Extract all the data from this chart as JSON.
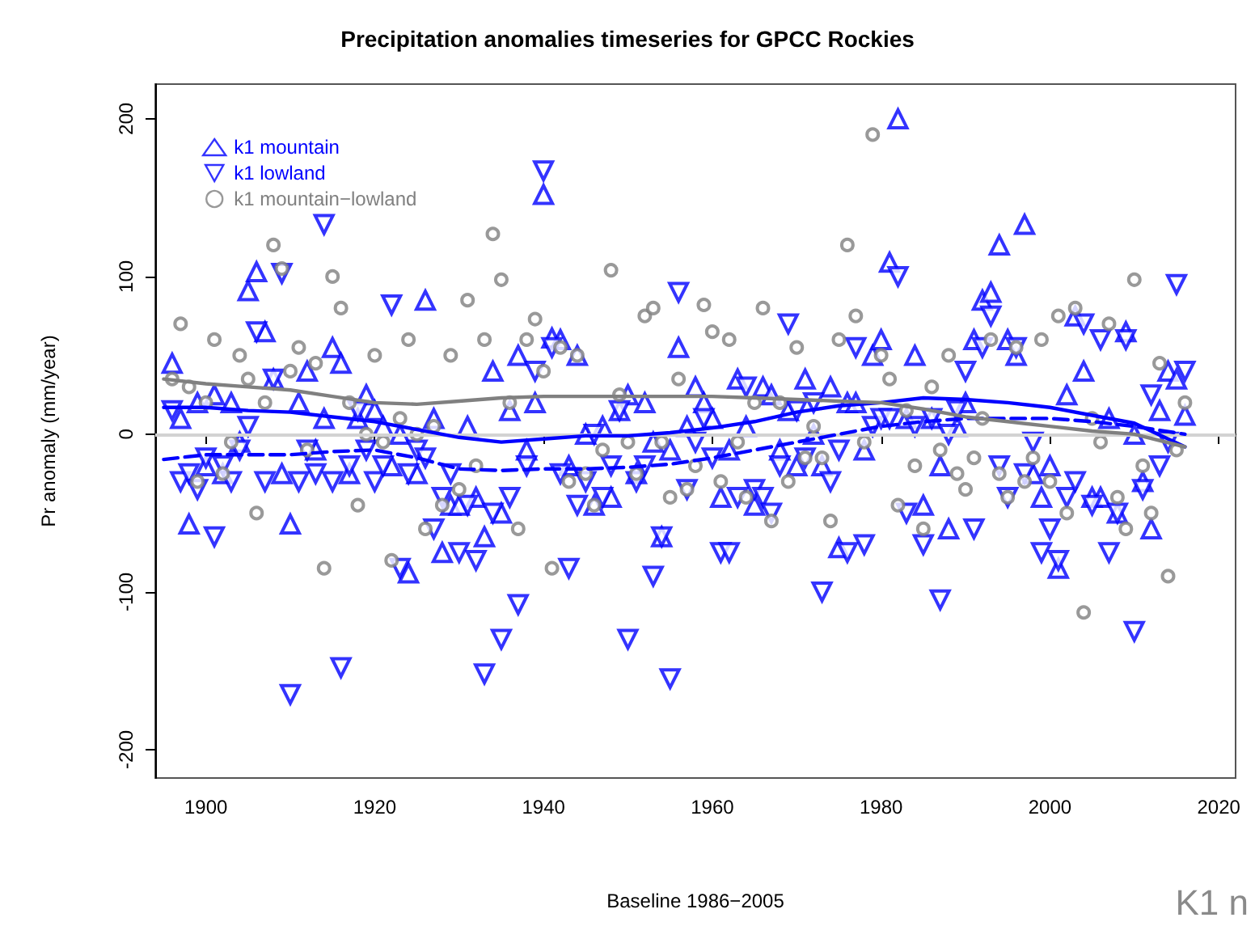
{
  "chart_data": {
    "type": "scatter",
    "title": "Precipitation anomalies timeseries for GPCC Rockies",
    "xlabel": "Baseline 1986−2005",
    "ylabel": "Pr anomaly (mm/year)",
    "annotations": [
      "K1 n"
    ],
    "xlim": [
      1894,
      2022
    ],
    "xticks": [
      1900,
      1920,
      1940,
      1960,
      1980,
      2000,
      2020
    ],
    "ylim": [
      -218,
      222
    ],
    "yticks": [
      -200,
      -100,
      0,
      100,
      200
    ],
    "grid": false,
    "legend": "top left",
    "ref_lines": [
      {
        "axis": "y",
        "value": 0,
        "color": "#d3d3d3"
      }
    ],
    "series": [
      {
        "name": "k1 mountain",
        "color": "#0000ff",
        "marker": "triangle",
        "x": [
          1896,
          1897,
          1898,
          1899,
          1900,
          1901,
          1902,
          1903,
          1904,
          1905,
          1906,
          1907,
          1908,
          1909,
          1910,
          1911,
          1912,
          1913,
          1914,
          1915,
          1916,
          1917,
          1918,
          1919,
          1920,
          1921,
          1922,
          1923,
          1924,
          1925,
          1926,
          1927,
          1928,
          1929,
          1930,
          1931,
          1932,
          1933,
          1934,
          1935,
          1936,
          1937,
          1938,
          1939,
          1940,
          1941,
          1942,
          1943,
          1944,
          1945,
          1946,
          1947,
          1948,
          1949,
          1950,
          1951,
          1952,
          1953,
          1954,
          1955,
          1956,
          1957,
          1958,
          1959,
          1960,
          1961,
          1962,
          1963,
          1964,
          1965,
          1966,
          1967,
          1968,
          1969,
          1970,
          1971,
          1972,
          1973,
          1974,
          1975,
          1976,
          1977,
          1978,
          1979,
          1980,
          1981,
          1982,
          1983,
          1984,
          1985,
          1986,
          1987,
          1988,
          1989,
          1990,
          1991,
          1992,
          1993,
          1994,
          1995,
          1996,
          1997,
          1998,
          1999,
          2000,
          2001,
          2002,
          2003,
          2004,
          2005,
          2006,
          2007,
          2008,
          2009,
          2010,
          2011,
          2012,
          2013,
          2014,
          2015,
          2016
        ],
        "values": [
          45,
          10,
          -57,
          20,
          -20,
          25,
          -25,
          20,
          -5,
          91,
          103,
          65,
          35,
          -25,
          -57,
          20,
          40,
          -10,
          10,
          55,
          45,
          -25,
          10,
          25,
          15,
          5,
          -20,
          0,
          -88,
          -25,
          85,
          10,
          -75,
          -45,
          -45,
          5,
          -40,
          -65,
          40,
          -50,
          15,
          50,
          -10,
          20,
          152,
          61,
          60,
          -20,
          50,
          0,
          -45,
          5,
          -40,
          15,
          25,
          -25,
          20,
          -5,
          -65,
          -10,
          55,
          5,
          30,
          20,
          10,
          -40,
          -10,
          35,
          5,
          -45,
          30,
          25,
          -10,
          15,
          -20,
          35,
          0,
          -20,
          30,
          -72,
          20,
          20,
          -10,
          50,
          60,
          109,
          200,
          10,
          50,
          -45,
          10,
          -20,
          -60,
          5,
          20,
          60,
          85,
          90,
          120,
          60,
          50,
          133,
          -25,
          -40,
          -20,
          -85,
          25,
          75,
          40,
          -40,
          -40,
          10,
          -50,
          65,
          0,
          -30,
          -60,
          15,
          40,
          35,
          12
        ]
      },
      {
        "name": "k1 lowland",
        "color": "#0000ff",
        "marker": "triangle-down",
        "x": [
          1896,
          1897,
          1898,
          1899,
          1900,
          1901,
          1902,
          1903,
          1904,
          1905,
          1906,
          1907,
          1908,
          1909,
          1910,
          1911,
          1912,
          1913,
          1914,
          1915,
          1916,
          1917,
          1918,
          1919,
          1920,
          1921,
          1922,
          1923,
          1924,
          1925,
          1926,
          1927,
          1928,
          1929,
          1930,
          1931,
          1932,
          1933,
          1934,
          1935,
          1936,
          1937,
          1938,
          1939,
          1940,
          1941,
          1942,
          1943,
          1944,
          1945,
          1946,
          1947,
          1948,
          1949,
          1950,
          1951,
          1952,
          1953,
          1954,
          1955,
          1956,
          1957,
          1958,
          1959,
          1960,
          1961,
          1962,
          1963,
          1964,
          1965,
          1966,
          1967,
          1968,
          1969,
          1970,
          1971,
          1972,
          1973,
          1974,
          1975,
          1976,
          1977,
          1978,
          1979,
          1980,
          1981,
          1982,
          1983,
          1984,
          1985,
          1986,
          1987,
          1988,
          1989,
          1990,
          1991,
          1992,
          1993,
          1994,
          1995,
          1996,
          1997,
          1998,
          1999,
          2000,
          2001,
          2002,
          2003,
          2004,
          2005,
          2006,
          2007,
          2008,
          2009,
          2010,
          2011,
          2012,
          2013,
          2014,
          2015,
          2016
        ],
        "values": [
          15,
          -30,
          -25,
          -35,
          -15,
          -65,
          -20,
          -30,
          -10,
          5,
          65,
          -30,
          35,
          102,
          -165,
          -30,
          -10,
          -25,
          133,
          -30,
          -148,
          -20,
          15,
          -10,
          -30,
          -20,
          82,
          -85,
          -25,
          -10,
          -15,
          -60,
          -40,
          -25,
          -75,
          -45,
          -80,
          -152,
          -50,
          -130,
          -40,
          -108,
          -20,
          40,
          167,
          55,
          -25,
          -85,
          -45,
          -30,
          0,
          -40,
          -20,
          15,
          -130,
          -30,
          -20,
          -90,
          -65,
          -155,
          90,
          -35,
          -5,
          10,
          -15,
          -75,
          -75,
          -40,
          30,
          -35,
          -40,
          -50,
          -20,
          70,
          15,
          -15,
          20,
          -100,
          -30,
          -10,
          -75,
          55,
          -70,
          5,
          10,
          10,
          100,
          -50,
          5,
          -70,
          10,
          -105,
          0,
          15,
          40,
          -60,
          55,
          75,
          -20,
          -40,
          55,
          -25,
          -5,
          -75,
          -60,
          -80,
          -40,
          -30,
          70,
          -45,
          60,
          -75,
          -50,
          60,
          -125,
          -35,
          25,
          -20,
          -5,
          95,
          40
        ]
      },
      {
        "name": "k1 mountain−lowland",
        "color": "#808080",
        "marker": "circle",
        "x": [
          1896,
          1897,
          1898,
          1899,
          1900,
          1901,
          1902,
          1903,
          1904,
          1905,
          1906,
          1907,
          1908,
          1909,
          1910,
          1911,
          1912,
          1913,
          1914,
          1915,
          1916,
          1917,
          1918,
          1919,
          1920,
          1921,
          1922,
          1923,
          1924,
          1925,
          1926,
          1927,
          1928,
          1929,
          1930,
          1931,
          1932,
          1933,
          1934,
          1935,
          1936,
          1937,
          1938,
          1939,
          1940,
          1941,
          1942,
          1943,
          1944,
          1945,
          1946,
          1947,
          1948,
          1949,
          1950,
          1951,
          1952,
          1953,
          1954,
          1955,
          1956,
          1957,
          1958,
          1959,
          1960,
          1961,
          1962,
          1963,
          1964,
          1965,
          1966,
          1967,
          1968,
          1969,
          1970,
          1971,
          1972,
          1973,
          1974,
          1975,
          1976,
          1977,
          1978,
          1979,
          1980,
          1981,
          1982,
          1983,
          1984,
          1985,
          1986,
          1987,
          1988,
          1989,
          1990,
          1991,
          1992,
          1993,
          1994,
          1995,
          1996,
          1997,
          1998,
          1999,
          2000,
          2001,
          2002,
          2003,
          2004,
          2005,
          2006,
          2007,
          2008,
          2009,
          2010,
          2011,
          2012,
          2013,
          2014,
          2015,
          2016
        ],
        "values": [
          35,
          70,
          30,
          -30,
          20,
          60,
          -25,
          -5,
          50,
          35,
          -50,
          20,
          120,
          105,
          40,
          55,
          -10,
          45,
          -85,
          100,
          80,
          20,
          -45,
          0,
          50,
          -5,
          -80,
          10,
          60,
          0,
          -60,
          5,
          -45,
          50,
          -35,
          85,
          -20,
          60,
          127,
          98,
          20,
          -60,
          60,
          73,
          40,
          -85,
          55,
          -30,
          50,
          -25,
          -45,
          -10,
          104,
          25,
          -5,
          -25,
          75,
          80,
          -5,
          -40,
          35,
          -35,
          -20,
          82,
          65,
          -30,
          60,
          -5,
          -40,
          20,
          80,
          -55,
          20,
          -30,
          55,
          -15,
          5,
          -15,
          -55,
          60,
          120,
          75,
          -5,
          190,
          50,
          35,
          -45,
          15,
          -20,
          -60,
          30,
          -10,
          50,
          -25,
          -35,
          -15,
          10,
          60,
          -25,
          -40,
          55,
          -30,
          -15,
          60,
          -30,
          75,
          -50,
          80,
          -113,
          10,
          -5,
          70,
          -40,
          -60,
          98,
          -20,
          -50,
          45,
          -90,
          -10,
          20
        ]
      },
      {
        "type": "line",
        "color": "#0000ff",
        "marker": "none",
        "line_style": "solid",
        "x": [
          1895,
          1900,
          1905,
          1910,
          1915,
          1920,
          1925,
          1930,
          1935,
          1940,
          1945,
          1950,
          1955,
          1960,
          1965,
          1970,
          1975,
          1980,
          1985,
          1990,
          1995,
          2000,
          2005,
          2010,
          2016
        ],
        "values": [
          17,
          17,
          15,
          14,
          11,
          8,
          3,
          -2,
          -5,
          -3,
          -1,
          -1,
          1,
          4,
          8,
          14,
          18,
          20,
          23,
          22,
          20,
          17,
          12,
          7,
          -8
        ]
      },
      {
        "type": "line",
        "color": "#0000ff",
        "marker": "none",
        "line_style": "dashed",
        "x": [
          1895,
          1900,
          1905,
          1910,
          1915,
          1920,
          1925,
          1930,
          1935,
          1940,
          1945,
          1950,
          1955,
          1960,
          1965,
          1970,
          1975,
          1980,
          1985,
          1990,
          1995,
          2000,
          2005,
          2010,
          2016
        ],
        "values": [
          -16,
          -13,
          -13,
          -13,
          -11,
          -10,
          -15,
          -22,
          -23,
          -22,
          -22,
          -21,
          -19,
          -15,
          -10,
          -5,
          0,
          5,
          8,
          10,
          10,
          10,
          8,
          5,
          0
        ]
      },
      {
        "type": "line",
        "color": "#808080",
        "marker": "none",
        "line_style": "solid",
        "x": [
          1895,
          1900,
          1905,
          1910,
          1915,
          1920,
          1925,
          1930,
          1935,
          1940,
          1945,
          1950,
          1955,
          1960,
          1965,
          1970,
          1975,
          1980,
          1985,
          1990,
          1995,
          2000,
          2005,
          2010,
          2016
        ],
        "values": [
          35,
          32,
          30,
          28,
          24,
          20,
          19,
          21,
          23,
          24,
          24,
          24,
          24,
          24,
          23,
          22,
          21,
          20,
          16,
          11,
          8,
          5,
          2,
          0,
          -8
        ]
      }
    ]
  }
}
